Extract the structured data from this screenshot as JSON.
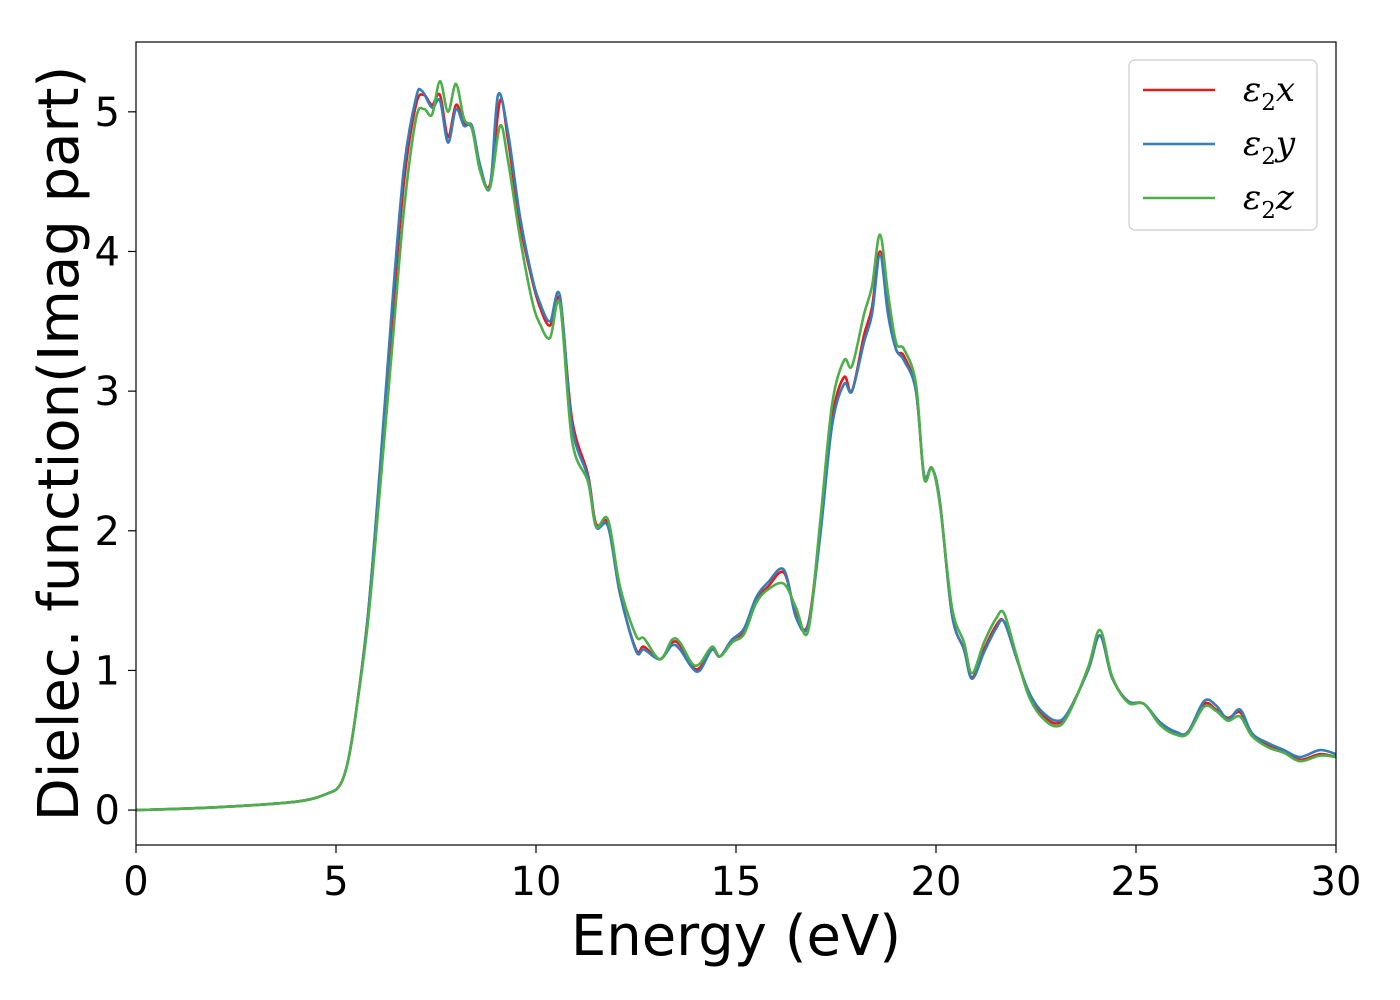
{
  "chart_data": {
    "type": "line",
    "xlabel": "Energy (eV)",
    "ylabel": "Dielec. function(Imag part)",
    "xlim": [
      0,
      30
    ],
    "ylim": [
      -0.25,
      5.5
    ],
    "x_ticks": [
      0,
      5,
      10,
      15,
      20,
      25,
      30
    ],
    "y_ticks": [
      0,
      1,
      2,
      3,
      4,
      5
    ],
    "x_tick_labels": [
      "0",
      "5",
      "10",
      "15",
      "20",
      "25",
      "30"
    ],
    "y_tick_labels": [
      "0",
      "1",
      "2",
      "3",
      "4",
      "5"
    ],
    "grid": false,
    "legend_position": "top-right",
    "series": [
      {
        "name": "ε2x",
        "legend_main": "ε",
        "legend_sub": "2",
        "legend_tail": "x",
        "color": "#e41a1c",
        "points": [
          [
            0,
            0
          ],
          [
            2,
            0.02
          ],
          [
            4,
            0.06
          ],
          [
            4.8,
            0.12
          ],
          [
            5.1,
            0.18
          ],
          [
            5.3,
            0.35
          ],
          [
            5.5,
            0.7
          ],
          [
            5.8,
            1.4
          ],
          [
            6.1,
            2.4
          ],
          [
            6.4,
            3.5
          ],
          [
            6.7,
            4.5
          ],
          [
            7.0,
            5.05
          ],
          [
            7.2,
            5.12
          ],
          [
            7.4,
            5.05
          ],
          [
            7.6,
            5.12
          ],
          [
            7.8,
            4.82
          ],
          [
            8.0,
            5.05
          ],
          [
            8.2,
            4.92
          ],
          [
            8.4,
            4.88
          ],
          [
            8.6,
            4.6
          ],
          [
            8.85,
            4.48
          ],
          [
            9.1,
            5.08
          ],
          [
            9.3,
            4.8
          ],
          [
            9.6,
            4.2
          ],
          [
            9.9,
            3.8
          ],
          [
            10.1,
            3.6
          ],
          [
            10.35,
            3.47
          ],
          [
            10.6,
            3.65
          ],
          [
            10.9,
            2.8
          ],
          [
            11.3,
            2.4
          ],
          [
            11.5,
            2.05
          ],
          [
            11.8,
            2.05
          ],
          [
            12.1,
            1.55
          ],
          [
            12.5,
            1.15
          ],
          [
            12.7,
            1.17
          ],
          [
            13.1,
            1.08
          ],
          [
            13.4,
            1.2
          ],
          [
            13.6,
            1.18
          ],
          [
            13.9,
            1.03
          ],
          [
            14.1,
            1.02
          ],
          [
            14.4,
            1.15
          ],
          [
            14.6,
            1.1
          ],
          [
            14.9,
            1.22
          ],
          [
            15.2,
            1.28
          ],
          [
            15.5,
            1.5
          ],
          [
            15.8,
            1.6
          ],
          [
            16.2,
            1.7
          ],
          [
            16.5,
            1.4
          ],
          [
            16.8,
            1.33
          ],
          [
            17.1,
            2.0
          ],
          [
            17.4,
            2.8
          ],
          [
            17.7,
            3.1
          ],
          [
            17.9,
            3.0
          ],
          [
            18.2,
            3.4
          ],
          [
            18.4,
            3.6
          ],
          [
            18.6,
            4.0
          ],
          [
            18.8,
            3.6
          ],
          [
            19.0,
            3.3
          ],
          [
            19.2,
            3.25
          ],
          [
            19.5,
            3.0
          ],
          [
            19.7,
            2.4
          ],
          [
            19.9,
            2.45
          ],
          [
            20.1,
            2.2
          ],
          [
            20.4,
            1.4
          ],
          [
            20.7,
            1.15
          ],
          [
            20.9,
            0.95
          ],
          [
            21.2,
            1.15
          ],
          [
            21.5,
            1.32
          ],
          [
            21.7,
            1.35
          ],
          [
            22.0,
            1.1
          ],
          [
            22.3,
            0.85
          ],
          [
            22.6,
            0.7
          ],
          [
            23.0,
            0.62
          ],
          [
            23.3,
            0.7
          ],
          [
            23.8,
            1.0
          ],
          [
            24.1,
            1.25
          ],
          [
            24.4,
            0.95
          ],
          [
            24.8,
            0.78
          ],
          [
            25.2,
            0.76
          ],
          [
            25.6,
            0.62
          ],
          [
            26.0,
            0.55
          ],
          [
            26.3,
            0.56
          ],
          [
            26.7,
            0.76
          ],
          [
            27.0,
            0.72
          ],
          [
            27.3,
            0.66
          ],
          [
            27.6,
            0.7
          ],
          [
            27.9,
            0.55
          ],
          [
            28.3,
            0.46
          ],
          [
            28.7,
            0.42
          ],
          [
            29.1,
            0.36
          ],
          [
            29.6,
            0.4
          ],
          [
            30,
            0.38
          ]
        ]
      },
      {
        "name": "ε2y",
        "legend_main": "ε",
        "legend_sub": "2",
        "legend_tail": "y",
        "color": "#377eb8",
        "points": [
          [
            0,
            0
          ],
          [
            2,
            0.02
          ],
          [
            4,
            0.06
          ],
          [
            4.8,
            0.12
          ],
          [
            5.1,
            0.18
          ],
          [
            5.3,
            0.35
          ],
          [
            5.5,
            0.7
          ],
          [
            5.8,
            1.4
          ],
          [
            6.1,
            2.45
          ],
          [
            6.4,
            3.6
          ],
          [
            6.7,
            4.6
          ],
          [
            7.0,
            5.1
          ],
          [
            7.15,
            5.15
          ],
          [
            7.4,
            5.03
          ],
          [
            7.6,
            5.08
          ],
          [
            7.8,
            4.78
          ],
          [
            8.0,
            5.02
          ],
          [
            8.2,
            4.9
          ],
          [
            8.4,
            4.9
          ],
          [
            8.6,
            4.62
          ],
          [
            8.85,
            4.46
          ],
          [
            9.05,
            5.12
          ],
          [
            9.3,
            4.85
          ],
          [
            9.6,
            4.25
          ],
          [
            9.9,
            3.82
          ],
          [
            10.1,
            3.63
          ],
          [
            10.35,
            3.5
          ],
          [
            10.6,
            3.68
          ],
          [
            10.9,
            2.75
          ],
          [
            11.3,
            2.38
          ],
          [
            11.5,
            2.03
          ],
          [
            11.8,
            2.03
          ],
          [
            12.1,
            1.55
          ],
          [
            12.5,
            1.14
          ],
          [
            12.7,
            1.15
          ],
          [
            13.1,
            1.08
          ],
          [
            13.4,
            1.18
          ],
          [
            13.6,
            1.15
          ],
          [
            13.9,
            1.02
          ],
          [
            14.1,
            1.0
          ],
          [
            14.4,
            1.15
          ],
          [
            14.6,
            1.1
          ],
          [
            14.9,
            1.22
          ],
          [
            15.2,
            1.3
          ],
          [
            15.5,
            1.52
          ],
          [
            15.8,
            1.63
          ],
          [
            16.2,
            1.72
          ],
          [
            16.5,
            1.38
          ],
          [
            16.8,
            1.32
          ],
          [
            17.1,
            1.95
          ],
          [
            17.4,
            2.75
          ],
          [
            17.7,
            3.05
          ],
          [
            17.9,
            3.0
          ],
          [
            18.2,
            3.35
          ],
          [
            18.4,
            3.55
          ],
          [
            18.6,
            3.97
          ],
          [
            18.8,
            3.55
          ],
          [
            19.0,
            3.3
          ],
          [
            19.2,
            3.22
          ],
          [
            19.5,
            3.0
          ],
          [
            19.7,
            2.4
          ],
          [
            19.9,
            2.45
          ],
          [
            20.1,
            2.2
          ],
          [
            20.4,
            1.4
          ],
          [
            20.7,
            1.15
          ],
          [
            20.9,
            0.94
          ],
          [
            21.2,
            1.13
          ],
          [
            21.5,
            1.3
          ],
          [
            21.7,
            1.35
          ],
          [
            22.0,
            1.1
          ],
          [
            22.3,
            0.86
          ],
          [
            22.6,
            0.72
          ],
          [
            23.0,
            0.64
          ],
          [
            23.3,
            0.7
          ],
          [
            23.8,
            1.0
          ],
          [
            24.1,
            1.25
          ],
          [
            24.4,
            0.95
          ],
          [
            24.8,
            0.78
          ],
          [
            25.2,
            0.76
          ],
          [
            25.6,
            0.63
          ],
          [
            26.0,
            0.56
          ],
          [
            26.3,
            0.56
          ],
          [
            26.7,
            0.78
          ],
          [
            27.0,
            0.75
          ],
          [
            27.3,
            0.65
          ],
          [
            27.6,
            0.72
          ],
          [
            27.9,
            0.55
          ],
          [
            28.3,
            0.48
          ],
          [
            28.7,
            0.43
          ],
          [
            29.1,
            0.38
          ],
          [
            29.6,
            0.43
          ],
          [
            30,
            0.4
          ]
        ]
      },
      {
        "name": "ε2z",
        "legend_main": "ε",
        "legend_sub": "2",
        "legend_tail": "z",
        "color": "#4daf4a",
        "points": [
          [
            0,
            0
          ],
          [
            2,
            0.02
          ],
          [
            4,
            0.06
          ],
          [
            4.8,
            0.12
          ],
          [
            5.1,
            0.18
          ],
          [
            5.3,
            0.35
          ],
          [
            5.5,
            0.7
          ],
          [
            5.8,
            1.35
          ],
          [
            6.1,
            2.3
          ],
          [
            6.4,
            3.3
          ],
          [
            6.7,
            4.3
          ],
          [
            7.0,
            4.95
          ],
          [
            7.2,
            5.02
          ],
          [
            7.4,
            4.98
          ],
          [
            7.6,
            5.22
          ],
          [
            7.8,
            5.0
          ],
          [
            8.0,
            5.2
          ],
          [
            8.2,
            4.95
          ],
          [
            8.4,
            4.88
          ],
          [
            8.6,
            4.58
          ],
          [
            8.85,
            4.46
          ],
          [
            9.1,
            4.9
          ],
          [
            9.3,
            4.65
          ],
          [
            9.6,
            4.1
          ],
          [
            9.9,
            3.65
          ],
          [
            10.1,
            3.48
          ],
          [
            10.35,
            3.38
          ],
          [
            10.6,
            3.62
          ],
          [
            10.9,
            2.65
          ],
          [
            11.3,
            2.35
          ],
          [
            11.5,
            2.03
          ],
          [
            11.8,
            2.08
          ],
          [
            12.1,
            1.6
          ],
          [
            12.5,
            1.25
          ],
          [
            12.7,
            1.23
          ],
          [
            13.1,
            1.08
          ],
          [
            13.4,
            1.22
          ],
          [
            13.6,
            1.2
          ],
          [
            13.9,
            1.05
          ],
          [
            14.1,
            1.05
          ],
          [
            14.4,
            1.17
          ],
          [
            14.6,
            1.1
          ],
          [
            14.9,
            1.2
          ],
          [
            15.2,
            1.26
          ],
          [
            15.5,
            1.48
          ],
          [
            15.8,
            1.58
          ],
          [
            16.2,
            1.62
          ],
          [
            16.5,
            1.45
          ],
          [
            16.8,
            1.28
          ],
          [
            17.1,
            2.05
          ],
          [
            17.4,
            2.9
          ],
          [
            17.7,
            3.22
          ],
          [
            17.9,
            3.18
          ],
          [
            18.2,
            3.55
          ],
          [
            18.4,
            3.75
          ],
          [
            18.6,
            4.12
          ],
          [
            18.8,
            3.7
          ],
          [
            19.0,
            3.35
          ],
          [
            19.2,
            3.3
          ],
          [
            19.5,
            3.05
          ],
          [
            19.7,
            2.38
          ],
          [
            19.9,
            2.45
          ],
          [
            20.1,
            2.18
          ],
          [
            20.4,
            1.45
          ],
          [
            20.7,
            1.2
          ],
          [
            20.9,
            0.98
          ],
          [
            21.2,
            1.2
          ],
          [
            21.5,
            1.37
          ],
          [
            21.7,
            1.41
          ],
          [
            22.0,
            1.12
          ],
          [
            22.3,
            0.83
          ],
          [
            22.6,
            0.68
          ],
          [
            23.0,
            0.6
          ],
          [
            23.3,
            0.68
          ],
          [
            23.8,
            1.02
          ],
          [
            24.1,
            1.29
          ],
          [
            24.4,
            0.96
          ],
          [
            24.8,
            0.77
          ],
          [
            25.2,
            0.76
          ],
          [
            25.6,
            0.61
          ],
          [
            26.0,
            0.54
          ],
          [
            26.3,
            0.55
          ],
          [
            26.7,
            0.74
          ],
          [
            27.0,
            0.71
          ],
          [
            27.3,
            0.64
          ],
          [
            27.6,
            0.67
          ],
          [
            27.9,
            0.53
          ],
          [
            28.3,
            0.45
          ],
          [
            28.7,
            0.41
          ],
          [
            29.1,
            0.35
          ],
          [
            29.6,
            0.39
          ],
          [
            30,
            0.38
          ]
        ]
      }
    ]
  }
}
